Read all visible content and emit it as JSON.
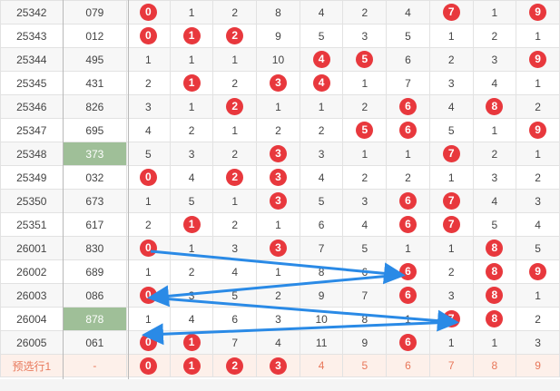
{
  "rows": [
    {
      "issue": "25342",
      "num": "079",
      "hl": false,
      "cells": [
        0,
        1,
        2,
        8,
        4,
        2,
        4,
        7,
        1,
        9
      ],
      "hit": [
        true,
        false,
        false,
        false,
        false,
        false,
        false,
        true,
        false,
        true
      ]
    },
    {
      "issue": "25343",
      "num": "012",
      "hl": false,
      "cells": [
        0,
        1,
        2,
        9,
        5,
        3,
        5,
        1,
        2,
        1
      ],
      "hit": [
        true,
        true,
        true,
        false,
        false,
        false,
        false,
        false,
        false,
        false
      ]
    },
    {
      "issue": "25344",
      "num": "495",
      "hl": false,
      "cells": [
        1,
        1,
        1,
        10,
        4,
        5,
        6,
        2,
        3,
        9
      ],
      "hit": [
        false,
        false,
        false,
        false,
        true,
        true,
        false,
        false,
        false,
        true
      ]
    },
    {
      "issue": "25345",
      "num": "431",
      "hl": false,
      "cells": [
        2,
        1,
        2,
        3,
        4,
        1,
        7,
        3,
        4,
        1
      ],
      "hit": [
        false,
        true,
        false,
        true,
        true,
        false,
        false,
        false,
        false,
        false
      ]
    },
    {
      "issue": "25346",
      "num": "826",
      "hl": false,
      "cells": [
        3,
        1,
        2,
        1,
        1,
        2,
        6,
        4,
        8,
        2
      ],
      "hit": [
        false,
        false,
        true,
        false,
        false,
        false,
        true,
        false,
        true,
        false
      ]
    },
    {
      "issue": "25347",
      "num": "695",
      "hl": false,
      "cells": [
        4,
        2,
        1,
        2,
        2,
        5,
        6,
        5,
        1,
        9
      ],
      "hit": [
        false,
        false,
        false,
        false,
        false,
        true,
        true,
        false,
        false,
        true
      ]
    },
    {
      "issue": "25348",
      "num": "373",
      "hl": true,
      "cells": [
        5,
        3,
        2,
        3,
        3,
        1,
        1,
        7,
        2,
        1
      ],
      "hit": [
        false,
        false,
        false,
        true,
        false,
        false,
        false,
        true,
        false,
        false
      ]
    },
    {
      "issue": "25349",
      "num": "032",
      "hl": false,
      "cells": [
        0,
        4,
        2,
        3,
        4,
        2,
        2,
        1,
        3,
        2
      ],
      "hit": [
        true,
        false,
        true,
        true,
        false,
        false,
        false,
        false,
        false,
        false
      ]
    },
    {
      "issue": "25350",
      "num": "673",
      "hl": false,
      "cells": [
        1,
        5,
        1,
        3,
        5,
        3,
        6,
        7,
        4,
        3
      ],
      "hit": [
        false,
        false,
        false,
        true,
        false,
        false,
        true,
        true,
        false,
        false
      ]
    },
    {
      "issue": "25351",
      "num": "617",
      "hl": false,
      "cells": [
        2,
        1,
        2,
        1,
        6,
        4,
        6,
        7,
        5,
        4
      ],
      "hit": [
        false,
        true,
        false,
        false,
        false,
        false,
        true,
        true,
        false,
        false
      ]
    },
    {
      "issue": "26001",
      "num": "830",
      "hl": false,
      "cells": [
        0,
        1,
        3,
        3,
        7,
        5,
        1,
        1,
        8,
        5
      ],
      "hit": [
        true,
        false,
        false,
        true,
        false,
        false,
        false,
        false,
        true,
        false
      ]
    },
    {
      "issue": "26002",
      "num": "689",
      "hl": false,
      "cells": [
        1,
        2,
        4,
        1,
        8,
        6,
        6,
        2,
        8,
        9
      ],
      "hit": [
        false,
        false,
        false,
        false,
        false,
        false,
        true,
        false,
        true,
        true
      ]
    },
    {
      "issue": "26003",
      "num": "086",
      "hl": false,
      "cells": [
        0,
        3,
        5,
        2,
        9,
        7,
        6,
        3,
        8,
        1
      ],
      "hit": [
        true,
        false,
        false,
        false,
        false,
        false,
        true,
        false,
        true,
        false
      ]
    },
    {
      "issue": "26004",
      "num": "878",
      "hl": true,
      "cells": [
        1,
        4,
        6,
        3,
        10,
        8,
        1,
        7,
        8,
        2
      ],
      "hit": [
        false,
        false,
        false,
        false,
        false,
        false,
        false,
        true,
        true,
        false
      ]
    },
    {
      "issue": "26005",
      "num": "061",
      "hl": false,
      "cells": [
        0,
        1,
        7,
        4,
        11,
        9,
        6,
        1,
        1,
        3
      ],
      "hit": [
        true,
        true,
        false,
        false,
        false,
        false,
        true,
        false,
        false,
        false
      ]
    }
  ],
  "preselect": {
    "label": "预选行1",
    "num": "-",
    "cells": [
      0,
      1,
      2,
      3,
      4,
      5,
      6,
      7,
      8,
      9
    ],
    "hit": [
      true,
      true,
      true,
      true,
      false,
      false,
      false,
      false,
      false,
      false
    ]
  },
  "colors": {
    "ball": "#e8383d",
    "highlight": "#9fbf98",
    "arrow": "#2a8ae6"
  }
}
